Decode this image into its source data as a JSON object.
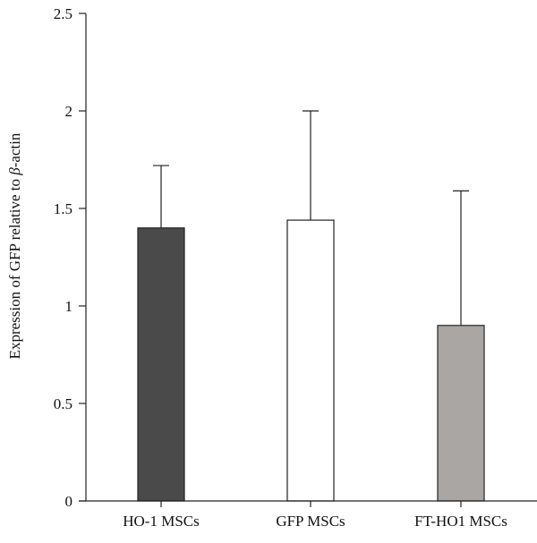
{
  "chart_data": {
    "type": "bar",
    "title": "",
    "xlabel": "",
    "ylabel_prefix": "Expression of GFP relative to ",
    "ylabel_greek": "β",
    "ylabel_suffix": "-actin",
    "ylim": [
      0,
      2.5
    ],
    "yticks": [
      0,
      0.5,
      1,
      1.5,
      2,
      2.5
    ],
    "ytick_labels": [
      "0",
      "0.5",
      "1",
      "1.5",
      "2",
      "2.5"
    ],
    "categories": [
      "HO-1 MSCs",
      "GFP MSCs",
      "FT-HO1 MSCs"
    ],
    "values": [
      1.4,
      1.44,
      0.9
    ],
    "error_upper": [
      1.72,
      2.0,
      1.59
    ],
    "colors": [
      "#4a4a4a",
      "#ffffff",
      "#aaa6a4"
    ],
    "grid": false,
    "legend": "none"
  }
}
